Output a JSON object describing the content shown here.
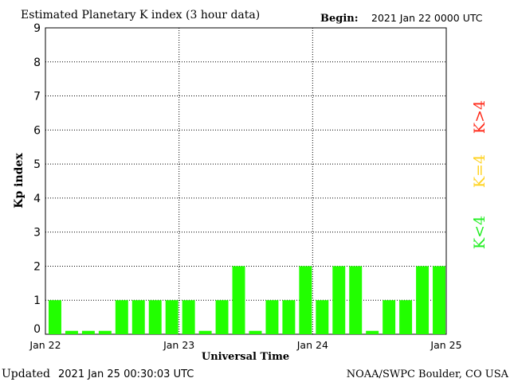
{
  "header": {
    "title": "Estimated Planetary K index (3 hour data)",
    "begin_label": "Begin:",
    "begin_value": "2021 Jan 22 0000 UTC"
  },
  "footer": {
    "updated_label": "Updated",
    "updated_value": "2021 Jan 25 00:30:03 UTC",
    "credit": "NOAA/SWPC Boulder, CO USA"
  },
  "legend": {
    "high": {
      "label": "K>4",
      "color": "#ff2a1a"
    },
    "equal": {
      "label": "K=4",
      "color": "#ffd21f"
    },
    "low": {
      "label": "K<4",
      "color": "#22ee22"
    }
  },
  "chart_data": {
    "type": "bar",
    "ylabel": "Kp index",
    "xlabel": "Universal Time",
    "ylim": [
      0,
      9
    ],
    "yticks": [
      "0",
      "1",
      "2",
      "3",
      "4",
      "5",
      "6",
      "7",
      "8",
      "9"
    ],
    "xticks": [
      "Jan 22",
      "Jan 23",
      "Jan 24",
      "Jan 25"
    ],
    "grid": true,
    "bar_color": "#22ff00",
    "values": [
      1,
      0,
      0,
      0,
      1,
      1,
      1,
      1,
      1,
      0,
      1,
      2,
      0,
      1,
      1,
      2,
      1,
      2,
      2,
      0,
      1,
      1,
      2,
      2
    ]
  }
}
